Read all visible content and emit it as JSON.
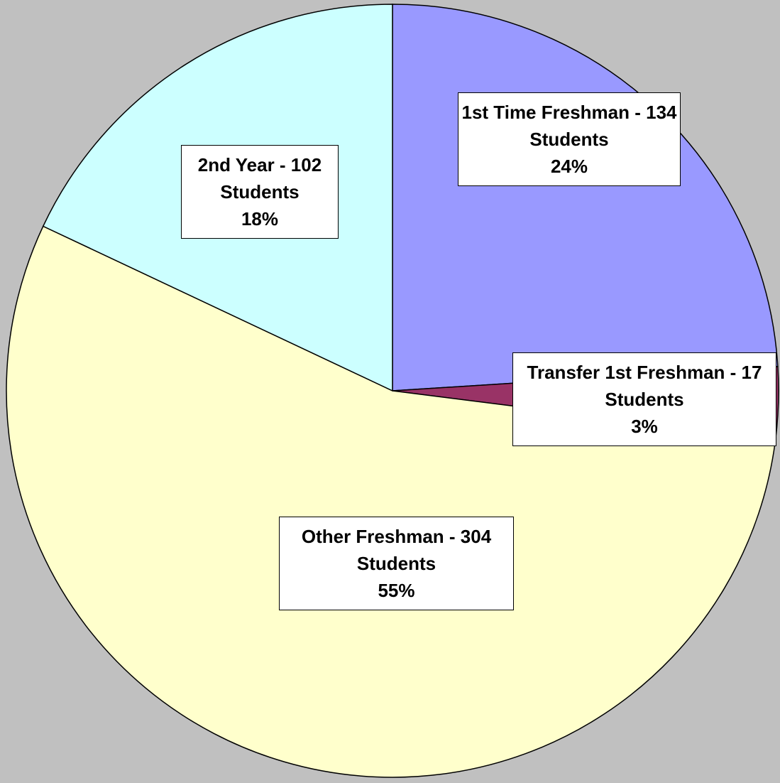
{
  "chart_data": {
    "type": "pie",
    "categories": [
      "1st Time Freshman - 134 Students",
      "Transfer 1st Freshman - 17 Students",
      "Other Freshman - 304 Students",
      "2nd Year - 102 Students"
    ],
    "values": [
      24,
      3,
      55,
      18
    ],
    "value_labels": [
      "24%",
      "3%",
      "55%",
      "18%"
    ],
    "colors": [
      "#9999ff",
      "#993366",
      "#ffffcc",
      "#ccffff"
    ]
  }
}
